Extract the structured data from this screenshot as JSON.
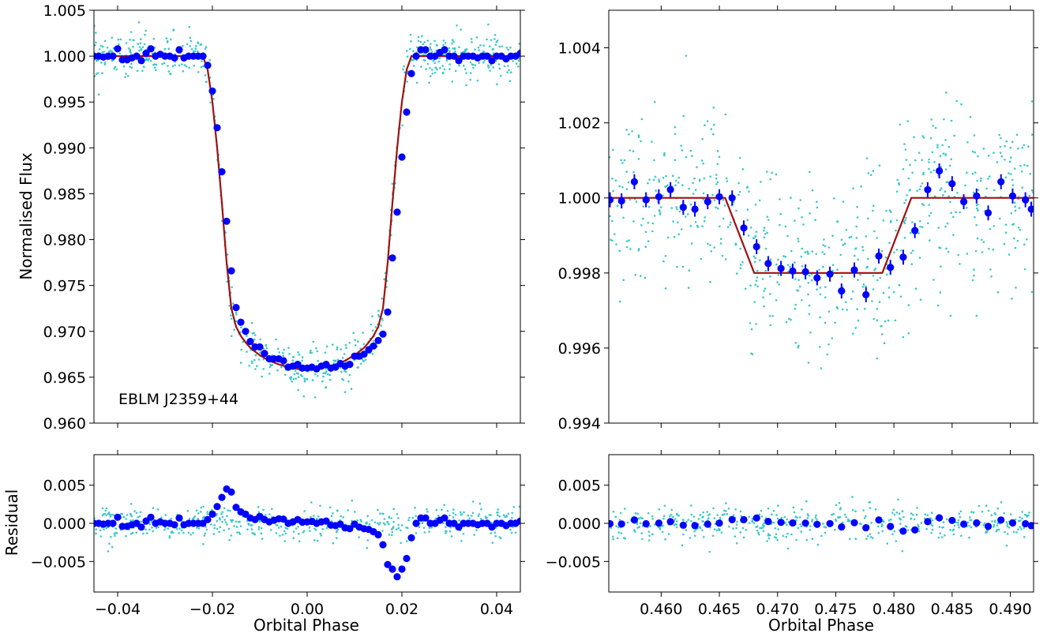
{
  "figure": {
    "ylabel_top": "Normalised Flux",
    "ylabel_bottom": "Residual",
    "xlabel": "Orbital Phase",
    "annotation": "EBLM J2359+44",
    "colors": {
      "raw_points": "#3cc8c8",
      "binned_points": "#0000ff",
      "model_line": "#a01010",
      "axes": "#000000"
    }
  },
  "chart_data": [
    {
      "id": "primary-eclipse",
      "type": "scatter",
      "title": "",
      "xlabel": "",
      "ylabel": "Normalised Flux",
      "xlim": [
        -0.045,
        0.045
      ],
      "ylim": [
        0.96,
        1.005
      ],
      "xticks": [
        -0.04,
        -0.02,
        0.0,
        0.02,
        0.04
      ],
      "xticklabels": [],
      "yticks": [
        0.96,
        0.965,
        0.97,
        0.975,
        0.98,
        0.985,
        0.99,
        0.995,
        1.0,
        1.005
      ],
      "yticklabels": [
        "0.960",
        "0.965",
        "0.970",
        "0.975",
        "0.980",
        "0.985",
        "0.990",
        "0.995",
        "1.000",
        "1.005"
      ],
      "grid": false,
      "annotation": "EBLM J2359+44",
      "model_line": {
        "x": [
          -0.045,
          -0.022,
          -0.021,
          -0.02,
          -0.019,
          -0.018,
          -0.017,
          -0.016,
          -0.015,
          -0.014,
          -0.013,
          -0.012,
          -0.01,
          -0.008,
          -0.006,
          -0.004,
          -0.002,
          0.0,
          0.002,
          0.004,
          0.006,
          0.008,
          0.01,
          0.012,
          0.013,
          0.014,
          0.015,
          0.016,
          0.017,
          0.018,
          0.019,
          0.02,
          0.021,
          0.022,
          0.045
        ],
        "y": [
          1.0,
          1.0,
          0.9985,
          0.995,
          0.99,
          0.984,
          0.9775,
          0.9725,
          0.9705,
          0.9695,
          0.9688,
          0.9682,
          0.9674,
          0.9668,
          0.9664,
          0.9661,
          0.9659,
          0.9658,
          0.9659,
          0.9661,
          0.9664,
          0.9668,
          0.9674,
          0.9682,
          0.9688,
          0.9695,
          0.9705,
          0.9725,
          0.9775,
          0.984,
          0.99,
          0.995,
          0.9985,
          1.0,
          1.0
        ]
      },
      "binned": {
        "x": [
          -0.045,
          -0.044,
          -0.043,
          -0.042,
          -0.041,
          -0.04,
          -0.039,
          -0.038,
          -0.037,
          -0.036,
          -0.035,
          -0.034,
          -0.033,
          -0.032,
          -0.031,
          -0.03,
          -0.029,
          -0.028,
          -0.027,
          -0.026,
          -0.025,
          -0.024,
          -0.023,
          -0.022,
          -0.021,
          -0.02,
          -0.019,
          -0.018,
          -0.017,
          -0.016,
          -0.015,
          -0.014,
          -0.013,
          -0.012,
          -0.011,
          -0.01,
          -0.009,
          -0.008,
          -0.007,
          -0.006,
          -0.005,
          -0.004,
          -0.003,
          -0.002,
          -0.001,
          0.0,
          0.001,
          0.002,
          0.003,
          0.004,
          0.005,
          0.006,
          0.007,
          0.008,
          0.009,
          0.01,
          0.011,
          0.012,
          0.013,
          0.014,
          0.015,
          0.016,
          0.017,
          0.018,
          0.019,
          0.02,
          0.021,
          0.022,
          0.023,
          0.024,
          0.025,
          0.026,
          0.027,
          0.028,
          0.029,
          0.03,
          0.031,
          0.032,
          0.033,
          0.034,
          0.035,
          0.036,
          0.037,
          0.038,
          0.039,
          0.04,
          0.041,
          0.042,
          0.043,
          0.044,
          0.045
        ],
        "y": [
          1.0,
          1.0,
          0.9999,
          1.0,
          1.0,
          1.0008,
          0.9996,
          0.9996,
          0.9998,
          1.0,
          0.9995,
          1.0003,
          1.0008,
          1.0,
          1.0002,
          1.0,
          1.0,
          0.9998,
          1.0007,
          0.9998,
          1.0,
          1.0,
          1.0,
          1.0,
          0.999,
          0.9962,
          0.9922,
          0.9874,
          0.982,
          0.9766,
          0.9726,
          0.971,
          0.97,
          0.9689,
          0.9683,
          0.9683,
          0.9676,
          0.967,
          0.967,
          0.967,
          0.9668,
          0.9661,
          0.9662,
          0.9664,
          0.966,
          0.966,
          0.9661,
          0.9659,
          0.9662,
          0.9664,
          0.966,
          0.9661,
          0.9665,
          0.9662,
          0.9664,
          0.9673,
          0.9673,
          0.9675,
          0.968,
          0.9684,
          0.969,
          0.9697,
          0.9721,
          0.978,
          0.983,
          0.989,
          0.9939,
          0.9981,
          1.0,
          1.0007,
          1.0007,
          1.0,
          1.0,
          1.0004,
          1.0007,
          1.0,
          1.0,
          0.9995,
          1.0,
          1.0,
          1.0,
          0.9998,
          1.0,
          1.0,
          0.9995,
          1.0,
          1.0,
          0.9997,
          1.0,
          1.0,
          1.0003
        ]
      },
      "raw_scatter_sigma": 0.0012
    },
    {
      "id": "secondary-eclipse",
      "type": "scatter",
      "title": "",
      "xlabel": "",
      "ylabel": "",
      "xlim": [
        0.4555,
        0.492
      ],
      "ylim": [
        0.994,
        1.005
      ],
      "xticks": [
        0.46,
        0.465,
        0.47,
        0.475,
        0.48,
        0.485,
        0.49
      ],
      "xticklabels": [],
      "yticks": [
        0.994,
        0.996,
        0.998,
        1.0,
        1.002,
        1.004
      ],
      "yticklabels": [
        "0.994",
        "0.996",
        "0.998",
        "1.000",
        "1.002",
        "1.004"
      ],
      "grid": false,
      "model_line": {
        "x": [
          0.4555,
          0.4655,
          0.468,
          0.479,
          0.4815,
          0.492
        ],
        "y": [
          1.0,
          1.0,
          0.998,
          0.998,
          1.0,
          1.0
        ]
      },
      "binned": {
        "x": [
          0.4556,
          0.4566,
          0.4577,
          0.4587,
          0.4598,
          0.4608,
          0.4619,
          0.4629,
          0.464,
          0.465,
          0.4661,
          0.4671,
          0.4682,
          0.4692,
          0.4703,
          0.4713,
          0.4724,
          0.4734,
          0.4745,
          0.4755,
          0.4766,
          0.4776,
          0.4787,
          0.4797,
          0.4808,
          0.4818,
          0.4829,
          0.4839,
          0.485,
          0.486,
          0.4871,
          0.4881,
          0.4892,
          0.4902,
          0.4913,
          0.4918
        ],
        "y": [
          0.99995,
          0.99992,
          1.00043,
          0.99995,
          1.00003,
          1.00022,
          0.99975,
          0.9997,
          0.9999,
          1.00003,
          1.0,
          0.9992,
          0.9987,
          0.99825,
          0.99812,
          0.99805,
          0.99803,
          0.99787,
          0.99797,
          0.99752,
          0.99808,
          0.99742,
          0.99845,
          0.99815,
          0.99842,
          0.99913,
          1.00022,
          1.00072,
          1.00038,
          0.9999,
          1.00005,
          0.9996,
          1.00043,
          1.00005,
          0.99995,
          0.9997
        ],
        "err": [
          0.0002,
          0.0002,
          0.0002,
          0.0002,
          0.0002,
          0.0002,
          0.0002,
          0.0002,
          0.0002,
          0.0002,
          0.0002,
          0.0002,
          0.0002,
          0.0002,
          0.0002,
          0.0002,
          0.0002,
          0.0002,
          0.0002,
          0.0002,
          0.0002,
          0.0002,
          0.0002,
          0.0002,
          0.0002,
          0.0002,
          0.0002,
          0.0002,
          0.0002,
          0.0002,
          0.0002,
          0.0002,
          0.0002,
          0.0002,
          0.0002,
          0.0002
        ]
      },
      "raw_scatter_sigma": 0.0012
    },
    {
      "id": "primary-residual",
      "type": "scatter",
      "title": "",
      "xlabel": "Orbital Phase",
      "ylabel": "Residual",
      "xlim": [
        -0.045,
        0.045
      ],
      "ylim": [
        -0.009,
        0.009
      ],
      "xticks": [
        -0.04,
        -0.02,
        0.0,
        0.02,
        0.04
      ],
      "xticklabels": [
        "−0.04",
        "−0.02",
        "0.00",
        "0.02",
        "0.04"
      ],
      "yticks": [
        -0.005,
        0.0,
        0.005
      ],
      "yticklabels": [
        "−0.005",
        "0.000",
        "0.005"
      ],
      "grid": false,
      "raw_scatter_sigma": 0.0011
    },
    {
      "id": "secondary-residual",
      "type": "scatter",
      "title": "",
      "xlabel": "Orbital Phase",
      "ylabel": "",
      "xlim": [
        0.4555,
        0.492
      ],
      "ylim": [
        -0.009,
        0.009
      ],
      "xticks": [
        0.46,
        0.465,
        0.47,
        0.475,
        0.48,
        0.485,
        0.49
      ],
      "xticklabels": [
        "0.460",
        "0.465",
        "0.470",
        "0.475",
        "0.480",
        "0.485",
        "0.490"
      ],
      "yticks": [
        -0.005,
        0.0,
        0.005
      ],
      "yticklabels": [
        "−0.005",
        "0.000",
        "0.005"
      ],
      "grid": false,
      "raw_scatter_sigma": 0.0011
    }
  ]
}
